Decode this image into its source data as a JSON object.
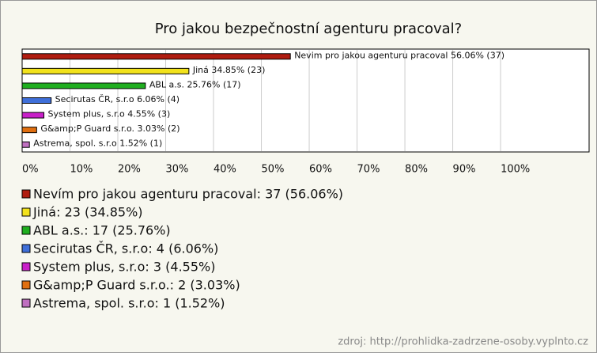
{
  "chart_data": {
    "type": "bar",
    "orientation": "horizontal",
    "title": "Pro jakou bezpečnostní agenturu pracoval?",
    "categories": [
      "Nevím pro jakou agenturu pracoval",
      "Jiná",
      "ABL a.s.",
      "Secirutas ČR, s.r.o",
      "System plus, s.r.o",
      "G&amp;P Guard s.r.o.",
      "Astrema, spol. s.r.o"
    ],
    "values": [
      56.06,
      34.85,
      25.76,
      6.06,
      4.55,
      3.03,
      1.52
    ],
    "value_labels": [
      "Nevim pro jakou agenturu pracoval 56.06% (37)",
      "Jiná 34.85% (23)",
      "ABL a.s. 25.76% (17)",
      "Secirutas ČR, s.r.o 6.06% (4)",
      "System plus, s.r.o 4.55% (3)",
      "G&amp;P Guard s.r.o. 3.03% (2)",
      "Astrema, spol. s.r.o 1.52% (1)"
    ],
    "colors": [
      "#b01c10",
      "#f2e21c",
      "#1fae1f",
      "#3f6fd9",
      "#c81fc8",
      "#e06f10",
      "#c070c0"
    ],
    "legend": [
      "Nevím pro jakou agenturu pracoval: 37 (56.06%)",
      "Jiná: 23 (34.85%)",
      "ABL a.s.: 17 (25.76%)",
      "Secirutas ČR, s.r.o: 4 (6.06%)",
      "System plus, s.r.o: 3 (4.55%)",
      "G&amp;P Guard s.r.o.: 2 (3.03%)",
      "Astrema, spol. s.r.o: 1 (1.52%)"
    ],
    "xlim": [
      0,
      118.5
    ],
    "xticks": [
      {
        "value": 0,
        "label": "0%"
      },
      {
        "value": 10,
        "label": "10%"
      },
      {
        "value": 20,
        "label": "20%"
      },
      {
        "value": 30,
        "label": "30%"
      },
      {
        "value": 40,
        "label": "40%"
      },
      {
        "value": 50,
        "label": "50%"
      },
      {
        "value": 60,
        "label": "60%"
      },
      {
        "value": 70,
        "label": "70%"
      },
      {
        "value": 80,
        "label": "80%"
      },
      {
        "value": 90,
        "label": "90%"
      },
      {
        "value": 100,
        "label": "100%"
      }
    ],
    "grid": true,
    "source": "zdroj: http://prohlidka-zadrzene-osoby.vyplnto.cz"
  }
}
